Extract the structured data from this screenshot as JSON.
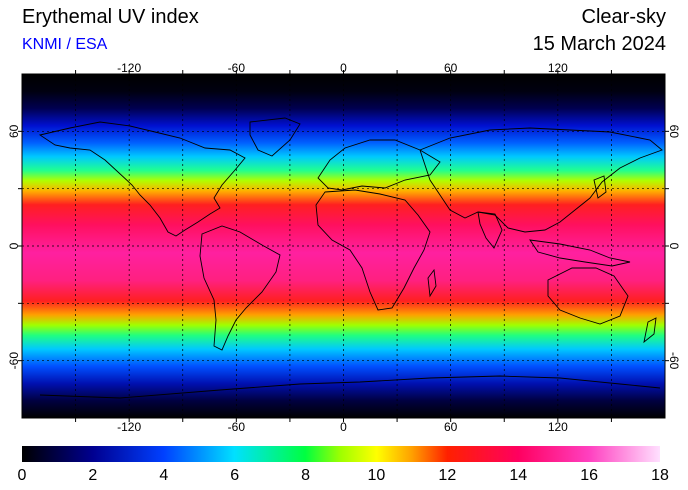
{
  "header": {
    "title": "Erythemal UV index",
    "source": "KNMI / ESA",
    "mode": "Clear-sky",
    "date": "15 March 2024"
  },
  "map": {
    "lon_ticks": [
      "-120",
      "-60",
      "0",
      "60",
      "120"
    ],
    "lat_ticks": [
      "60",
      "0",
      "-60"
    ],
    "lon_values": [
      -120,
      -60,
      0,
      60,
      120
    ],
    "lat_values": [
      60,
      0,
      -60
    ],
    "grid_lon": [
      -150,
      -120,
      -90,
      -60,
      -30,
      0,
      30,
      60,
      90,
      120,
      150
    ],
    "grid_lat": [
      60,
      30,
      0,
      -30,
      -60
    ]
  },
  "colorbar": {
    "labels": [
      "0",
      "2",
      "4",
      "6",
      "8",
      "10",
      "12",
      "14",
      "16",
      "18"
    ],
    "min": 0,
    "max": 18
  }
}
